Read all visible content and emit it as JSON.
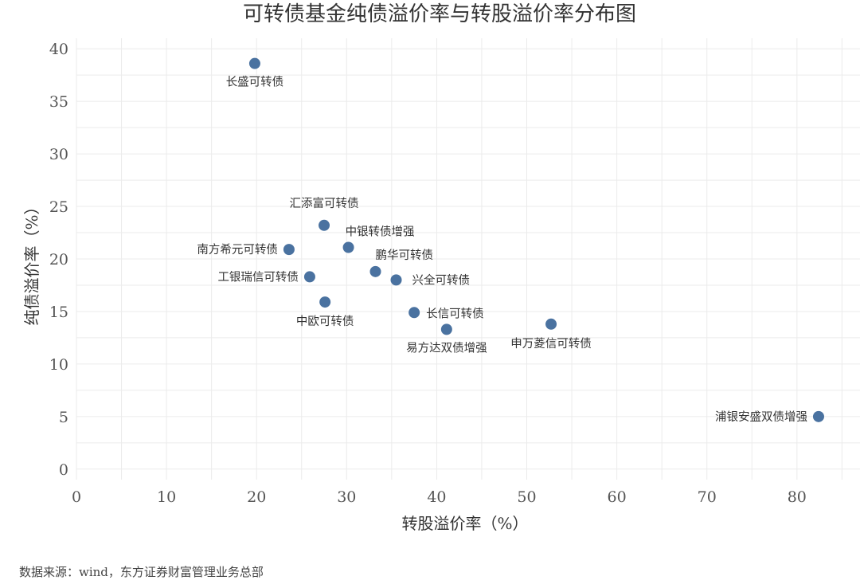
{
  "chart_data": {
    "type": "scatter",
    "title": "可转债基金纯债溢价率与转股溢价率分布图",
    "xlabel": "转股溢价率（%）",
    "ylabel": "纯债溢价率（%）",
    "xlim": [
      0,
      87
    ],
    "ylim": [
      -1,
      41
    ],
    "xticks": [
      "0",
      "10",
      "20",
      "30",
      "40",
      "50",
      "60",
      "70",
      "80"
    ],
    "yticks": [
      "0",
      "5",
      "10",
      "15",
      "20",
      "25",
      "30",
      "35",
      "40"
    ],
    "grid": true,
    "point_color": "#4a72a0",
    "points": [
      {
        "label": "长盛可转债",
        "x": 19.8,
        "y": 38.6
      },
      {
        "label": "汇添富可转债",
        "x": 27.5,
        "y": 23.2
      },
      {
        "label": "中银转债增强",
        "x": 30.2,
        "y": 21.1
      },
      {
        "label": "南方希元可转债",
        "x": 23.6,
        "y": 20.9
      },
      {
        "label": "鹏华可转债",
        "x": 33.2,
        "y": 18.8
      },
      {
        "label": "工银瑞信可转债",
        "x": 25.9,
        "y": 18.3
      },
      {
        "label": "兴全可转债",
        "x": 35.5,
        "y": 18.0
      },
      {
        "label": "中欧可转债",
        "x": 27.6,
        "y": 15.9
      },
      {
        "label": "长信可转债",
        "x": 37.5,
        "y": 14.9
      },
      {
        "label": "申万菱信可转债",
        "x": 52.7,
        "y": 13.8
      },
      {
        "label": "易方达双债增强",
        "x": 41.1,
        "y": 13.3
      },
      {
        "label": "浦银安盛双债增强",
        "x": 82.4,
        "y": 5.0
      }
    ]
  },
  "source_note": "数据来源：wind，东方证券财富管理业务总部"
}
